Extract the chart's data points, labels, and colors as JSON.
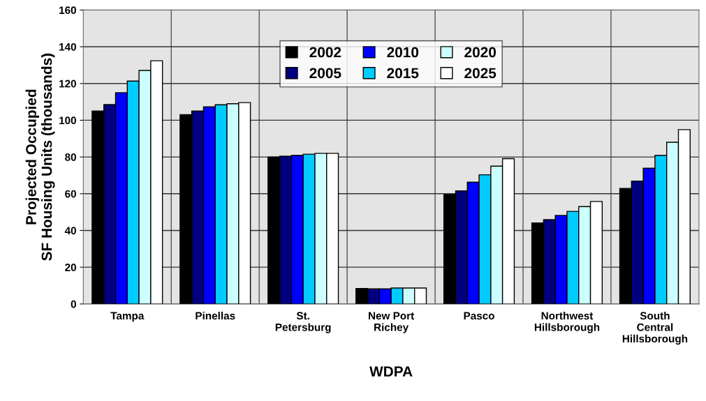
{
  "chart_data": {
    "type": "bar",
    "xlabel": "WDPA",
    "ylabel": "Projected Occupied\nSF Housing Units (thousands)",
    "categories": [
      "Tampa",
      "Pinellas",
      "St.\nPetersburg",
      "New Port\nRichey",
      "Pasco",
      "Northwest\nHillsborough",
      "South\nCentral\nHillsborough"
    ],
    "series": [
      {
        "name": "2002",
        "color": "#000000",
        "values": [
          105,
          103,
          80,
          8.4,
          59.6,
          44.1,
          62.9
        ]
      },
      {
        "name": "2005",
        "color": "#000080",
        "values": [
          108.5,
          105,
          80.4,
          8.2,
          61.6,
          45.9,
          66.9
        ]
      },
      {
        "name": "2010",
        "color": "#0000ff",
        "values": [
          115,
          107.3,
          80.9,
          8.2,
          66.3,
          48.2,
          73.9
        ]
      },
      {
        "name": "2015",
        "color": "#00ccff",
        "values": [
          121.3,
          108.4,
          81.5,
          8.7,
          70.3,
          50.4,
          80.9
        ]
      },
      {
        "name": "2020",
        "color": "#ccffff",
        "values": [
          127.1,
          109,
          82,
          8.7,
          75,
          53,
          88
        ]
      },
      {
        "name": "2025",
        "color": "#ffffff",
        "values": [
          132.4,
          109.6,
          82,
          8.7,
          79.1,
          55.8,
          94.9
        ]
      }
    ],
    "ylim": [
      0,
      160
    ],
    "yticks": [
      0,
      20,
      40,
      60,
      80,
      100,
      120,
      140,
      160
    ],
    "grid": true,
    "legend": "top"
  }
}
